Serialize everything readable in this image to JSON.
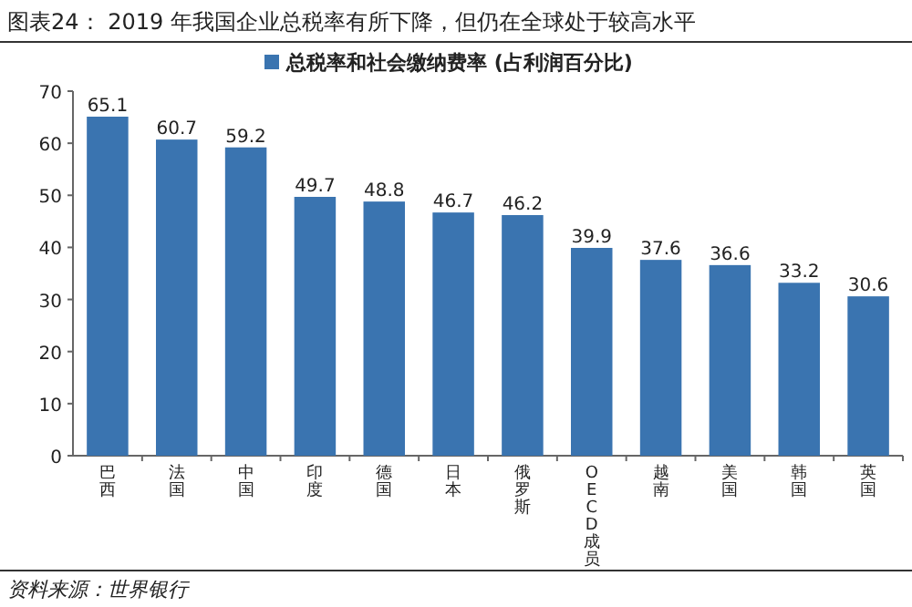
{
  "chart_data": {
    "type": "bar",
    "title": "图表24：   2019 年我国企业总税率有所下降，但仍在全球处于较高水平",
    "categories": [
      "巴西",
      "法国",
      "中国",
      "印度",
      "德国",
      "日本",
      "俄罗斯",
      "OECD成员",
      "越南",
      "美国",
      "韩国",
      "英国"
    ],
    "series": [
      {
        "name": "总税率和社会缴纳费率 (占利润百分比)",
        "color": "#3a74b0",
        "values": [
          65.1,
          60.7,
          59.2,
          49.7,
          48.8,
          46.7,
          46.2,
          39.9,
          37.6,
          36.6,
          33.2,
          30.6
        ]
      }
    ],
    "ylim": [
      0,
      70
    ],
    "yticks": [
      0,
      10,
      20,
      30,
      40,
      50,
      60,
      70
    ],
    "data_labels": true,
    "legend": "top",
    "grid": false,
    "annotations": [
      "资料来源：世界银行"
    ]
  }
}
